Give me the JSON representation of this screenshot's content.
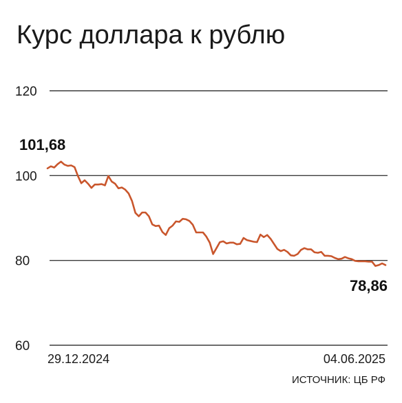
{
  "chart_data": {
    "type": "line",
    "title": "Курс доллара к рублю",
    "ylim": [
      60,
      120
    ],
    "yticks": [
      60,
      80,
      100,
      120
    ],
    "x_start_label": "29.12.2024",
    "x_end_label": "04.06.2025",
    "start_label": "101,68",
    "end_label": "78,86",
    "source": "ИСТОЧНИК: ЦБ РФ",
    "line_color": "#c9562c",
    "grid": true,
    "series": [
      {
        "values": [
          101.7,
          102.2,
          101.9,
          102.7,
          103.3,
          102.6,
          102.3,
          102.4,
          102.0,
          99.9,
          98.2,
          98.9,
          98.1,
          97.1,
          97.9,
          97.9,
          98.0,
          97.7,
          99.9,
          98.6,
          98.1,
          97.0,
          97.2,
          96.7,
          95.8,
          94.0,
          91.2,
          90.4,
          91.3,
          91.3,
          90.4,
          88.5,
          88.1,
          88.2,
          86.7,
          86.0,
          87.6,
          88.2,
          89.2,
          89.1,
          89.8,
          89.7,
          89.3,
          88.4,
          86.6,
          86.6,
          86.6,
          85.6,
          84.2,
          81.5,
          82.9,
          84.3,
          84.5,
          84.0,
          84.2,
          84.2,
          83.8,
          83.9,
          85.3,
          84.8,
          84.6,
          84.4,
          84.3,
          86.1,
          85.5,
          86.0,
          85.1,
          83.9,
          82.7,
          82.2,
          82.5,
          82.0,
          81.2,
          81.1,
          81.5,
          82.5,
          82.9,
          82.6,
          82.6,
          81.9,
          81.8,
          82.0,
          81.1,
          81.1,
          81.0,
          80.6,
          80.3,
          80.4,
          80.8,
          80.5,
          80.3,
          79.9,
          79.8,
          79.8,
          79.8,
          79.7,
          79.7,
          78.7,
          78.9,
          79.3,
          78.9
        ]
      }
    ]
  }
}
